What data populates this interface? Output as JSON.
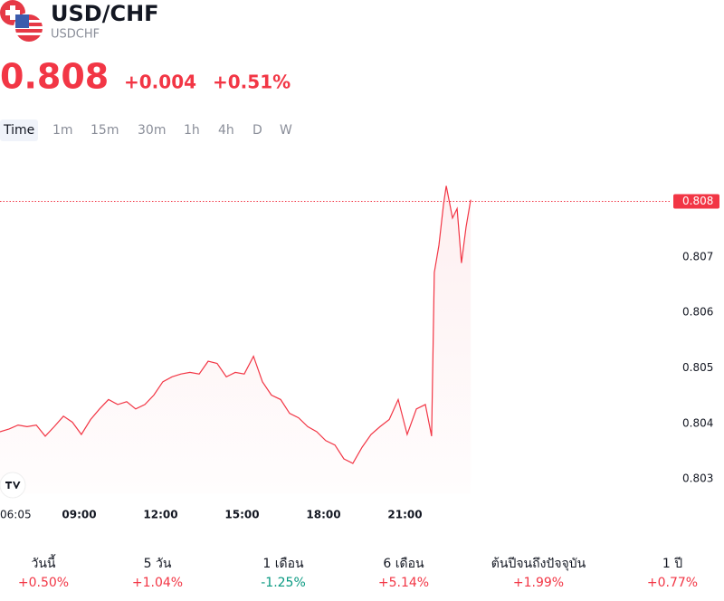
{
  "header": {
    "symbol": "USD/CHF",
    "ticker": "USDCHF",
    "price": "0.808",
    "change": "+0.004",
    "change_pct": "+0.51%"
  },
  "intervals": {
    "items": [
      "Time",
      "1m",
      "15m",
      "30m",
      "1h",
      "4h",
      "D",
      "W"
    ],
    "active": 0
  },
  "performance": [
    {
      "label": "วันนี้",
      "value": "+0.50%",
      "color": "#f23645"
    },
    {
      "label": "5 วัน",
      "value": "+1.04%",
      "color": "#f23645"
    },
    {
      "label": "1 เดือน",
      "value": "-1.25%",
      "color": "#089981"
    },
    {
      "label": "6 เดือน",
      "value": "+5.14%",
      "color": "#f23645"
    },
    {
      "label": "ต้นปีจนถึงปัจจุบัน",
      "value": "+1.99%",
      "color": "#f23645"
    },
    {
      "label": "1 ปี",
      "value": "+0.77%",
      "color": "#f23645"
    }
  ],
  "chart_data": {
    "type": "line",
    "x": [
      6.08,
      6.42,
      6.75,
      7.08,
      7.42,
      7.75,
      8.08,
      8.42,
      8.75,
      9.08,
      9.42,
      9.75,
      10.08,
      10.42,
      10.75,
      11.08,
      11.42,
      11.75,
      12.08,
      12.42,
      12.75,
      13.08,
      13.42,
      13.75,
      14.08,
      14.42,
      14.75,
      15.08,
      15.42,
      15.75,
      16.08,
      16.42,
      16.75,
      17.08,
      17.42,
      17.75,
      18.08,
      18.42,
      18.75,
      19.08,
      19.42,
      19.75,
      20.08,
      20.42,
      20.75,
      21.08,
      21.42,
      21.75,
      21.98,
      22.08,
      22.25,
      22.42,
      22.52,
      22.75,
      22.92,
      23.08,
      23.25,
      23.42
    ],
    "series": [
      {
        "name": "USDCHF",
        "color": "#f23645",
        "values": [
          0.80385,
          0.8039,
          0.80397,
          0.80394,
          0.80397,
          0.80377,
          0.80394,
          0.80413,
          0.80402,
          0.8038,
          0.80407,
          0.80426,
          0.80443,
          0.80434,
          0.80439,
          0.80426,
          0.80434,
          0.80451,
          0.80475,
          0.80484,
          0.80489,
          0.80492,
          0.80489,
          0.80512,
          0.80508,
          0.80484,
          0.80492,
          0.80489,
          0.80521,
          0.80475,
          0.80451,
          0.80443,
          0.80418,
          0.8041,
          0.80394,
          0.80385,
          0.80369,
          0.80361,
          0.80336,
          0.80328,
          0.80357,
          0.8038,
          0.80394,
          0.80407,
          0.80443,
          0.8038,
          0.80426,
          0.80434,
          0.80377,
          0.80672,
          0.80721,
          0.80795,
          0.80828,
          0.8077,
          0.80787,
          0.80689,
          0.80754,
          0.80803
        ]
      }
    ],
    "xlim": [
      6.0833,
      30.75
    ],
    "xticks": [
      {
        "value": 6.0833,
        "label": "06:05"
      },
      {
        "value": 9,
        "label": "09:00"
      },
      {
        "value": 12,
        "label": "12:00"
      },
      {
        "value": 15,
        "label": "15:00"
      },
      {
        "value": 18,
        "label": "18:00"
      },
      {
        "value": 21,
        "label": "21:00"
      }
    ],
    "ylim": [
      0.80274,
      0.80902
    ],
    "yticks": [
      0.803,
      0.804,
      0.805,
      0.806,
      0.807
    ],
    "price_line": 0.808,
    "grid": false
  }
}
